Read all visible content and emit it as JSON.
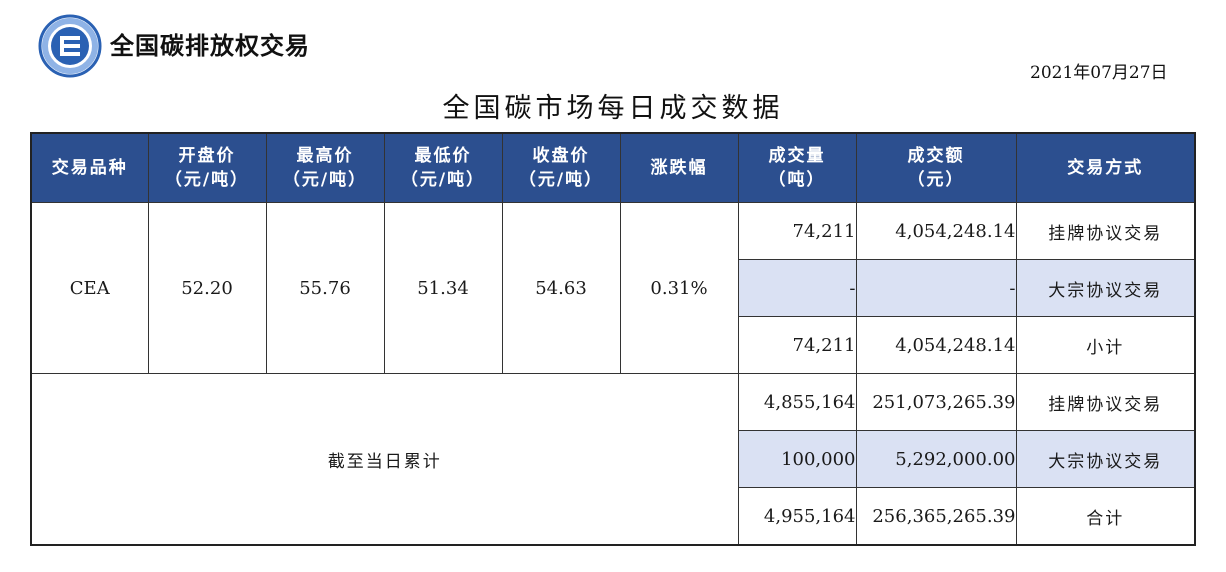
{
  "header": {
    "brand": "全国碳排放权交易",
    "date": "2021年07月27日",
    "title": "全国碳市场每日成交数据"
  },
  "colors": {
    "header_bg": "#2c4f8f",
    "shade_bg": "#dae1f3",
    "logo_ring": "#2a61b3"
  },
  "table": {
    "columns": [
      {
        "l1": "交易品种",
        "l2": ""
      },
      {
        "l1": "开盘价",
        "l2": "（元/吨）"
      },
      {
        "l1": "最高价",
        "l2": "（元/吨）"
      },
      {
        "l1": "最低价",
        "l2": "（元/吨）"
      },
      {
        "l1": "收盘价",
        "l2": "（元/吨）"
      },
      {
        "l1": "涨跌幅",
        "l2": ""
      },
      {
        "l1": "成交量",
        "l2": "（吨）"
      },
      {
        "l1": "成交额",
        "l2": "（元）"
      },
      {
        "l1": "交易方式",
        "l2": ""
      }
    ],
    "product": {
      "name": "CEA",
      "open": "52.20",
      "high": "55.76",
      "low": "51.34",
      "close": "54.63",
      "change": "0.31%"
    },
    "daily_rows": [
      {
        "volume": "74,211",
        "amount": "4,054,248.14",
        "mode": "挂牌协议交易"
      },
      {
        "volume": "-",
        "amount": "-",
        "mode": "大宗协议交易"
      },
      {
        "volume": "74,211",
        "amount": "4,054,248.14",
        "mode": "小计"
      }
    ],
    "cumulative_label": "截至当日累计",
    "cumulative_rows": [
      {
        "volume": "4,855,164",
        "amount": "251,073,265.39",
        "mode": "挂牌协议交易"
      },
      {
        "volume": "100,000",
        "amount": "5,292,000.00",
        "mode": "大宗协议交易"
      },
      {
        "volume": "4,955,164",
        "amount": "256,365,265.39",
        "mode": "合计"
      }
    ]
  }
}
